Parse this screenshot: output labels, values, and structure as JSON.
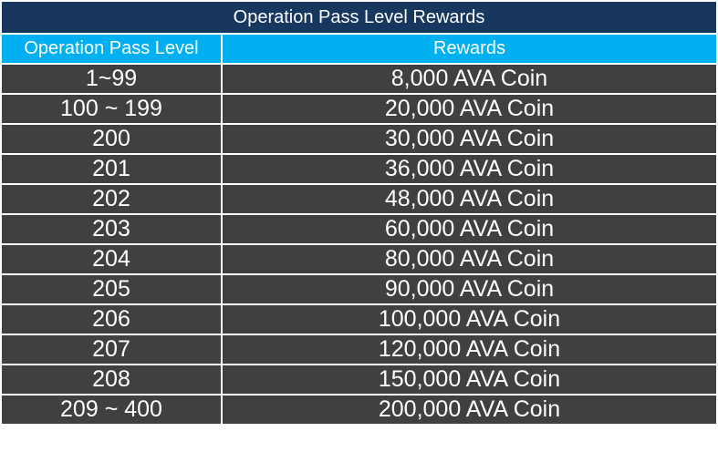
{
  "table": {
    "title": "Operation Pass Level Rewards",
    "columns": [
      "Operation Pass Level",
      "Rewards"
    ],
    "rows": [
      [
        "1~99",
        "8,000 AVA Coin"
      ],
      [
        "100 ~ 199",
        "20,000 AVA Coin"
      ],
      [
        "200",
        "30,000 AVA Coin"
      ],
      [
        "201",
        "36,000 AVA Coin"
      ],
      [
        "202",
        "48,000 AVA Coin"
      ],
      [
        "203",
        "60,000 AVA Coin"
      ],
      [
        "204",
        "80,000 AVA Coin"
      ],
      [
        "205",
        "90,000 AVA Coin"
      ],
      [
        "206",
        "100,000 AVA Coin"
      ],
      [
        "207",
        "120,000 AVA Coin"
      ],
      [
        "208",
        "150,000 AVA Coin"
      ],
      [
        "209 ~ 400",
        "200,000 AVA Coin"
      ]
    ]
  }
}
